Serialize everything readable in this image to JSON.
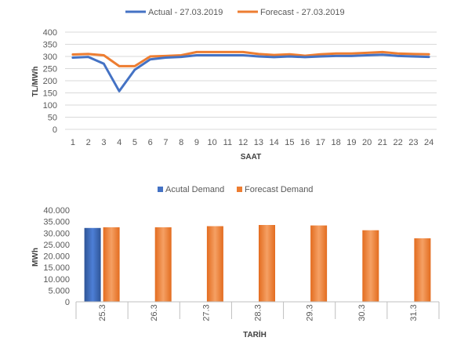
{
  "chart_data": [
    {
      "type": "line",
      "title": "",
      "xlabel": "SAAT",
      "ylabel": "TL/MWh",
      "ylim": [
        0,
        400
      ],
      "yticks": [
        "0",
        "50",
        "100",
        "150",
        "200",
        "250",
        "300",
        "350",
        "400"
      ],
      "grid": true,
      "legend": "top-center",
      "categories": [
        "1",
        "2",
        "3",
        "4",
        "5",
        "6",
        "7",
        "8",
        "9",
        "10",
        "11",
        "12",
        "13",
        "14",
        "15",
        "16",
        "17",
        "18",
        "19",
        "20",
        "21",
        "22",
        "23",
        "24"
      ],
      "series": [
        {
          "name": "Actual - 27.03.2019",
          "color": "#4472c4",
          "values": [
            295,
            298,
            270,
            157,
            245,
            288,
            295,
            298,
            305,
            305,
            305,
            305,
            300,
            297,
            300,
            297,
            300,
            302,
            302,
            305,
            307,
            302,
            300,
            298
          ]
        },
        {
          "name": "Forecast - 27.03.2019",
          "color": "#ed7d31",
          "values": [
            308,
            310,
            305,
            260,
            260,
            300,
            302,
            305,
            318,
            318,
            318,
            318,
            310,
            306,
            309,
            303,
            309,
            312,
            312,
            315,
            318,
            312,
            310,
            309
          ]
        }
      ]
    },
    {
      "type": "bar",
      "title": "",
      "xlabel": "TARİH",
      "ylabel": "MWh",
      "ylim": [
        0,
        40000
      ],
      "yticks": [
        "0",
        "5.000",
        "10.000",
        "15.000",
        "20.000",
        "25.000",
        "30.000",
        "35.000",
        "40.000"
      ],
      "grid": false,
      "legend": "top-center",
      "categories": [
        "25.3",
        "26.3",
        "27.3",
        "28.3",
        "29.3",
        "30.3",
        "31.3"
      ],
      "series": [
        {
          "name": "Acutal Demand",
          "color": "#4472c4",
          "values": [
            32200,
            null,
            null,
            null,
            null,
            null,
            null
          ]
        },
        {
          "name": "Forecast Demand",
          "color": "#ed7d31",
          "values": [
            32500,
            32500,
            33000,
            33500,
            33300,
            31200,
            27700
          ]
        }
      ]
    }
  ]
}
